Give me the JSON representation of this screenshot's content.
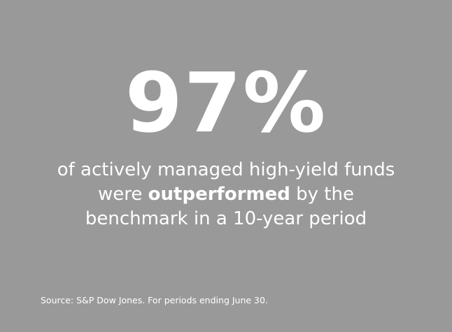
{
  "colors": {
    "background": "#999999",
    "text": "#ffffff"
  },
  "headline": {
    "stat": "97%"
  },
  "statement": {
    "line1": "of actively managed high-yield funds",
    "line2_prefix": "were ",
    "line2_emphasis": "outperformed",
    "line2_suffix": " by the",
    "line3": "benchmark in a 10-year period"
  },
  "footer": {
    "source": "Source: S&P Dow Jones. For periods ending June 30."
  }
}
